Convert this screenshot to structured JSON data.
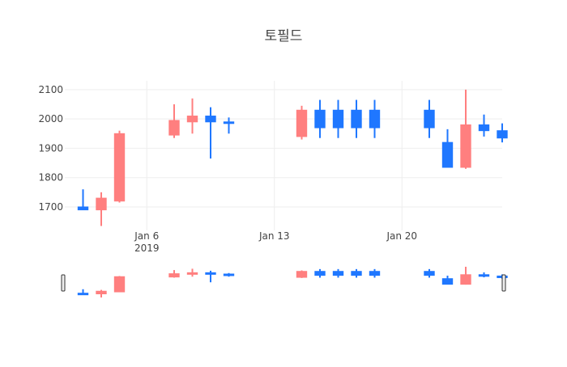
{
  "chart_data": {
    "type": "candlestick",
    "title": "토필드",
    "xlabel": "",
    "ylabel": "",
    "ylim": [
      1620,
      2130
    ],
    "yticks": [
      1700,
      1800,
      1900,
      2000,
      2100
    ],
    "xrange": [
      "2019-01-01T12:00",
      "2019-01-25T12:00"
    ],
    "xticks": [
      {
        "date": "2019-01-06",
        "label": "Jan 6",
        "sublabel": "2019"
      },
      {
        "date": "2019-01-13",
        "label": "Jan 13",
        "sublabel": ""
      },
      {
        "date": "2019-01-20",
        "label": "Jan 20",
        "sublabel": ""
      }
    ],
    "grid": true,
    "legend": "none",
    "rangeslider": true,
    "colors": {
      "increasing": "#1f77ff",
      "decreasing": "#ff7f7f",
      "grid": "#eeeeee"
    },
    "candles": [
      {
        "date": "2019-01-02",
        "open": 1690,
        "high": 1760,
        "low": 1690,
        "close": 1700
      },
      {
        "date": "2019-01-03",
        "open": 1730,
        "high": 1750,
        "low": 1635,
        "close": 1690
      },
      {
        "date": "2019-01-04",
        "open": 1950,
        "high": 1960,
        "low": 1715,
        "close": 1720
      },
      {
        "date": "2019-01-07",
        "open": 1995,
        "high": 2050,
        "low": 1935,
        "close": 1945
      },
      {
        "date": "2019-01-08",
        "open": 2010,
        "high": 2070,
        "low": 1950,
        "close": 1990
      },
      {
        "date": "2019-01-09",
        "open": 1990,
        "high": 2040,
        "low": 1865,
        "close": 2010
      },
      {
        "date": "2019-01-10",
        "open": 1985,
        "high": 2005,
        "low": 1950,
        "close": 1990
      },
      {
        "date": "2019-01-14",
        "open": 2030,
        "high": 2045,
        "low": 1930,
        "close": 1940
      },
      {
        "date": "2019-01-15",
        "open": 1970,
        "high": 2065,
        "low": 1935,
        "close": 2030
      },
      {
        "date": "2019-01-16",
        "open": 1970,
        "high": 2065,
        "low": 1935,
        "close": 2030
      },
      {
        "date": "2019-01-17",
        "open": 1970,
        "high": 2065,
        "low": 1935,
        "close": 2030
      },
      {
        "date": "2019-01-18",
        "open": 1970,
        "high": 2065,
        "low": 1935,
        "close": 2030
      },
      {
        "date": "2019-01-21",
        "open": 1970,
        "high": 2065,
        "low": 1935,
        "close": 2030
      },
      {
        "date": "2019-01-22",
        "open": 1835,
        "high": 1965,
        "low": 1835,
        "close": 1920
      },
      {
        "date": "2019-01-23",
        "open": 1980,
        "high": 2100,
        "low": 1830,
        "close": 1835
      },
      {
        "date": "2019-01-24",
        "open": 1960,
        "high": 2015,
        "low": 1940,
        "close": 1980
      },
      {
        "date": "2019-01-25",
        "open": 1935,
        "high": 1985,
        "low": 1920,
        "close": 1960
      }
    ]
  }
}
